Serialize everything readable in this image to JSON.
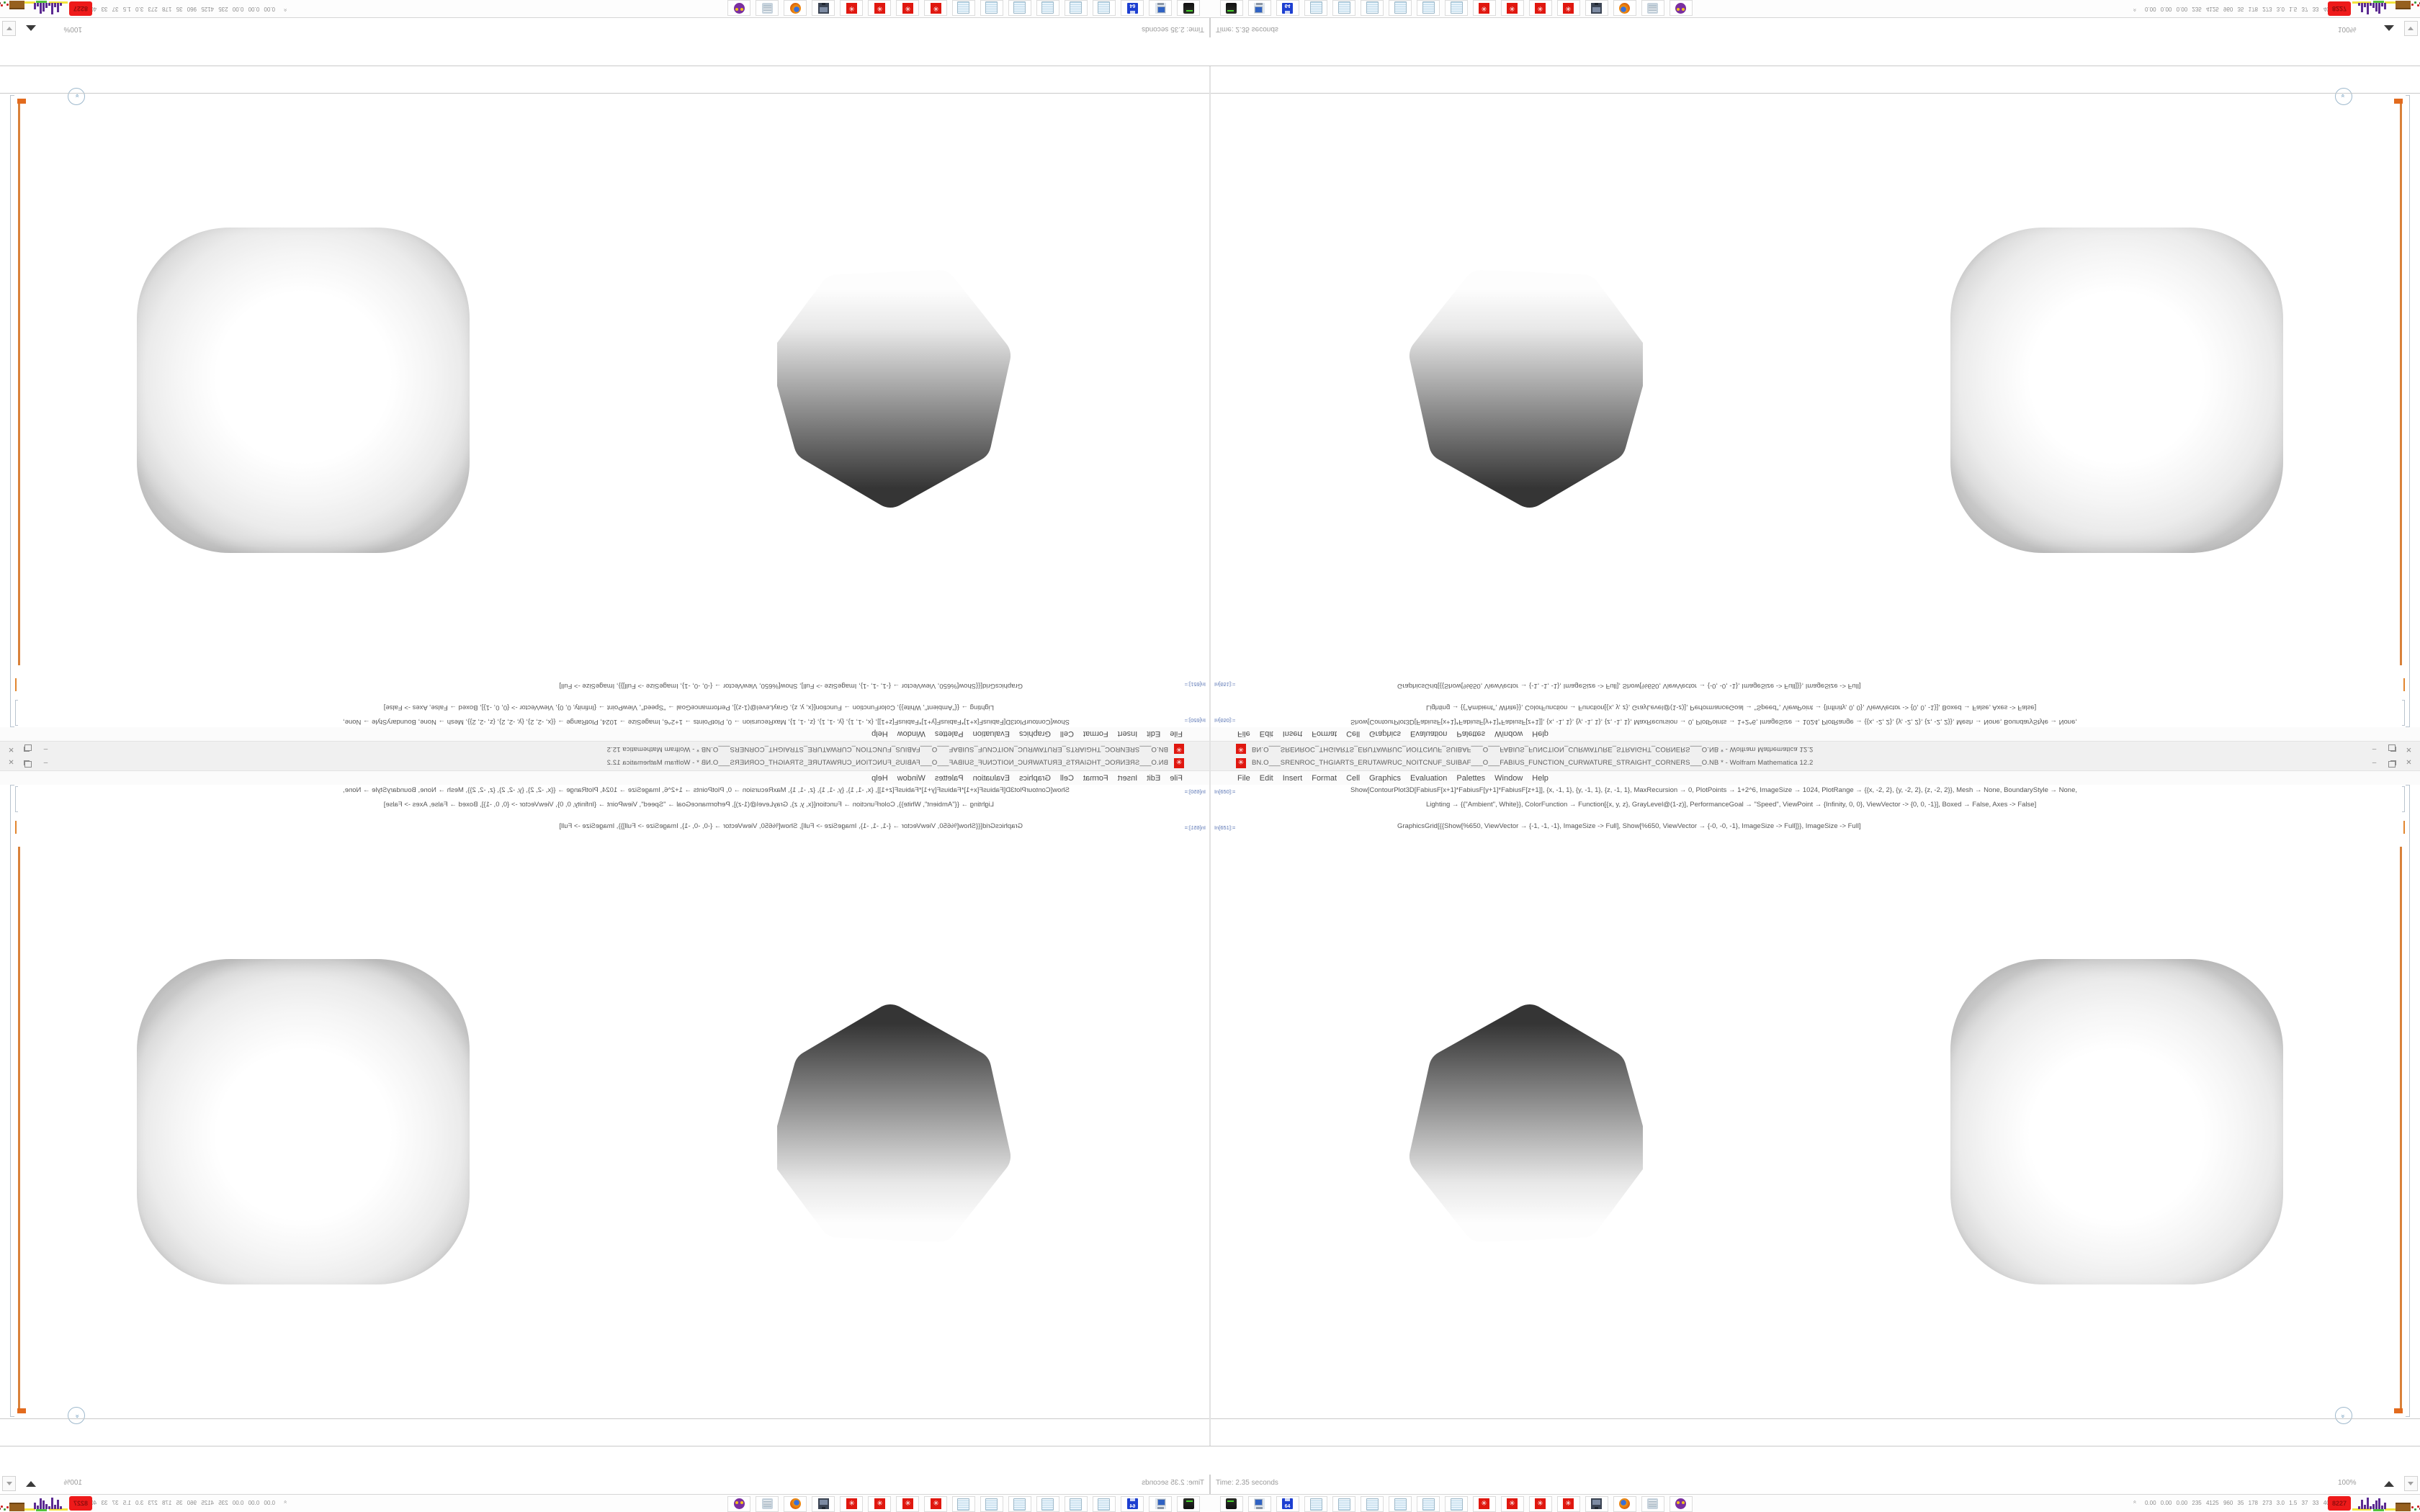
{
  "window": {
    "title": "BN.O___SRENROC_THGIARTS_ERUTAWRUC_NOITCNUF_SUIBAF___O___FABIUS_FUNCTION_CURWATURE_STRAIGHT_CORNERS___O.NB * - Wolfram Mathematica 12.2",
    "app_icon": "red-spikey",
    "buttons": {
      "minimize": "–",
      "close": "✕"
    },
    "menu": [
      "File",
      "Edit",
      "Insert",
      "Format",
      "Cell",
      "Graphics",
      "Evaluation",
      "Palettes",
      "Window",
      "Help"
    ]
  },
  "notebook": {
    "cell1_label": "In[650]:=",
    "code_line_1": "Show[ContourPlot3D[FabiusF[x+1]*FabiusF[y+1]*FabiusF[z+1]], {x, -1, 1}, {y, -1, 1}, {z, -1, 1}, MaxRecursion → 0, PlotPoints → 1+2^6, ImageSize → 1024, PlotRange → {{x, -2, 2}, {y, -2, 2}, {z, -2, 2}}, Mesh → None, BoundaryStyle → None,",
    "code_line_2": "Lighting → {{\"Ambient\", White}}, ColorFunction → Function[{x, y, z}, GrayLevel@(1-z)], PerformanceGoal → \"Speed\", ViewPoint → {Infinity, 0, 0}, ViewVector -> {0, 0, -1}], Boxed → False, Axes -> False]",
    "cell2_label": "In[651]:=",
    "code_line_3": "GraphicsGrid[{{Show[%650, ViewVector → {-1, -1, -1}, ImageSize -> Full], Show[%650, ViewVector → {-0, -0, -1}, ImageSize -> Full]}}, ImageSize -> Full]",
    "chevron_glyph": "»"
  },
  "status": {
    "time_label": "Time: 2.35 seconds",
    "zoom_level": "100%"
  },
  "taskbar": {
    "quick_launch": [
      "zip-drive",
      "computer",
      "floppy-64",
      "notepad",
      "notepad",
      "notepad",
      "notepad",
      "notepad",
      "notepad",
      "red-gear",
      "red-gear",
      "red-gear",
      "red-gear",
      "monitor-camera",
      "firefox",
      "scroll",
      "owl"
    ],
    "gear_glyph": "✳",
    "tray_caret": "»",
    "tray_numbers": "0.00 0.00 0.00 235 4125 960 35 178 273 3.0 1.5 37 33 4072",
    "tray_badge": "8227",
    "skyline_bars": [
      4,
      13,
      6,
      16,
      4,
      7,
      12,
      15,
      5,
      9
    ],
    "scatter_dots": [
      {
        "x": 0,
        "y": 2,
        "c": "#cc2222"
      },
      {
        "x": 4,
        "y": 5,
        "c": "#3a9d3a"
      },
      {
        "x": 8,
        "y": 1,
        "c": "#cc2222"
      },
      {
        "x": 11,
        "y": 4,
        "c": "#7a1f1f"
      },
      {
        "x": 14,
        "y": 6,
        "c": "#3a9d3a"
      },
      {
        "x": 17,
        "y": 3,
        "c": "#cc2222"
      }
    ]
  },
  "colors": {
    "accent_orange_bracket": "#d8813a",
    "mathematica_red": "#e0170f",
    "badge_red": "#ee1a1a",
    "skyline_purple": "#5b2a92"
  }
}
